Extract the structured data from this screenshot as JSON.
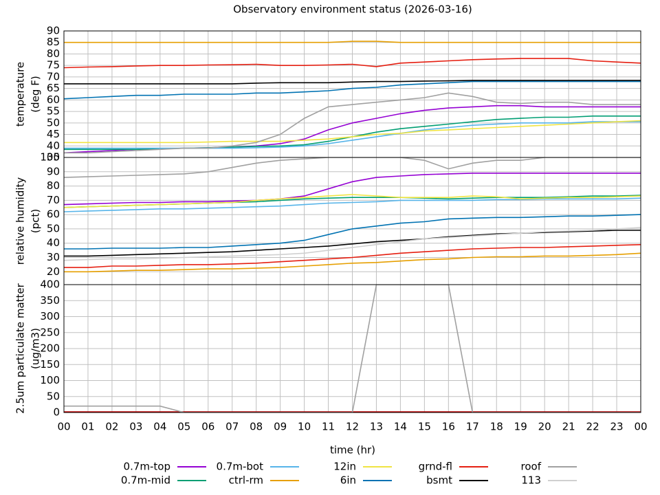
{
  "chart_data": [
    {
      "type": "line",
      "title": "Observatory environment status (2026-03-16)",
      "ylabel": [
        "temperature",
        "(deg F)"
      ],
      "x": [
        0,
        1,
        2,
        3,
        4,
        5,
        6,
        7,
        8,
        9,
        10,
        11,
        12,
        13,
        14,
        15,
        16,
        17,
        18,
        19,
        20,
        21,
        22,
        23,
        24
      ],
      "xlim": [
        0,
        24
      ],
      "ylim": [
        35,
        90
      ],
      "yticks": [
        35,
        40,
        45,
        50,
        55,
        60,
        65,
        70,
        75,
        80,
        85,
        90
      ],
      "grid": true,
      "series": [
        {
          "name": "0.7m-top",
          "color": "#9400d3",
          "values": [
            37,
            37.5,
            38,
            38.5,
            38.8,
            39,
            39.2,
            39.5,
            40,
            41,
            43,
            47,
            50,
            52,
            54,
            55.5,
            56.5,
            57,
            57.5,
            57.5,
            57,
            57,
            57,
            57,
            57
          ]
        },
        {
          "name": "0.7m-mid",
          "color": "#009e73",
          "values": [
            38.5,
            38.5,
            38.5,
            38.5,
            38.7,
            39,
            39.2,
            39.5,
            39.8,
            40,
            40.5,
            42,
            44,
            46,
            47.5,
            48.5,
            49.5,
            50.5,
            51.5,
            52,
            52.5,
            52.5,
            53,
            53,
            53
          ]
        },
        {
          "name": "0.7m-bot",
          "color": "#56b4e9",
          "values": [
            39,
            39,
            39,
            39,
            39,
            39,
            39,
            39,
            39.2,
            39.5,
            40,
            41,
            42.5,
            44,
            45.5,
            47,
            48,
            49,
            49.5,
            50,
            50,
            50,
            50.5,
            50.5,
            50.5
          ]
        },
        {
          "name": "ctrl-rm",
          "color": "#e69f00",
          "values": [
            85,
            85,
            85,
            85,
            85,
            85,
            85,
            85,
            85,
            85,
            85,
            85,
            85.5,
            85.5,
            85,
            85,
            85,
            85,
            85,
            85,
            85,
            85,
            85,
            85,
            85
          ]
        },
        {
          "name": "12in",
          "color": "#f0e442",
          "values": [
            41.5,
            41.5,
            41.5,
            41.5,
            41.5,
            41.5,
            41.7,
            42,
            42,
            42,
            42.5,
            43,
            44,
            45,
            45.5,
            46.5,
            47,
            47.5,
            48,
            48.5,
            49,
            49.5,
            50,
            50.5,
            51
          ]
        },
        {
          "name": "6in",
          "color": "#0072b2",
          "values": [
            60.5,
            61,
            61.5,
            62,
            62,
            62.5,
            62.5,
            62.5,
            63,
            63,
            63.5,
            64,
            65,
            65.5,
            66.5,
            67,
            67.5,
            68,
            68,
            68,
            68,
            68,
            68,
            68,
            68
          ]
        },
        {
          "name": "grnd-fl",
          "color": "#e51e10",
          "values": [
            74,
            74.3,
            74.5,
            74.8,
            75,
            75,
            75.2,
            75.3,
            75.5,
            75,
            75,
            75.2,
            75.5,
            74.5,
            76,
            76.5,
            77,
            77.5,
            77.8,
            78,
            78,
            78,
            77,
            76.5,
            76
          ]
        },
        {
          "name": "bsmt",
          "color": "#000000",
          "values": [
            67,
            67,
            67,
            67,
            67,
            67,
            67,
            67,
            67.3,
            67.5,
            67.5,
            67.5,
            67.8,
            68,
            68,
            68.2,
            68.3,
            68.5,
            68.5,
            68.5,
            68.5,
            68.5,
            68.5,
            68.5,
            68.5
          ]
        },
        {
          "name": "roof",
          "color": "#a0a0a0",
          "values": [
            37,
            37,
            37.5,
            38,
            38.5,
            39,
            39,
            40,
            41.5,
            45,
            52,
            57,
            58,
            59,
            60,
            61,
            63,
            61.5,
            59,
            58.5,
            59,
            59,
            58,
            58,
            58
          ]
        },
        {
          "name": "113",
          "color": "#d0d0d0",
          "values": [
            null,
            null,
            null,
            null,
            null,
            null,
            null,
            null,
            null,
            null,
            null,
            null,
            null,
            null,
            null,
            null,
            null,
            null,
            null,
            null,
            null,
            null,
            null,
            null,
            null
          ]
        }
      ]
    },
    {
      "type": "line",
      "ylabel": [
        "relative humidity",
        "(pct)"
      ],
      "x": [
        0,
        1,
        2,
        3,
        4,
        5,
        6,
        7,
        8,
        9,
        10,
        11,
        12,
        13,
        14,
        15,
        16,
        17,
        18,
        19,
        20,
        21,
        22,
        23,
        24
      ],
      "xlim": [
        0,
        24
      ],
      "ylim": [
        11,
        100
      ],
      "yticks": [
        20,
        30,
        40,
        50,
        60,
        70,
        80,
        90,
        100
      ],
      "grid": true,
      "series": [
        {
          "name": "0.7m-top",
          "color": "#9400d3",
          "values": [
            67,
            67.5,
            68,
            68.5,
            68.5,
            69,
            69,
            69.5,
            70,
            71,
            73,
            78,
            83,
            86,
            87,
            88,
            88.5,
            89,
            89,
            89,
            89,
            89,
            89,
            89,
            89
          ]
        },
        {
          "name": "0.7m-mid",
          "color": "#009e73",
          "values": [
            65,
            65.5,
            66,
            66.5,
            67,
            67.5,
            68,
            68.5,
            69,
            70,
            71,
            71.5,
            72,
            72,
            72,
            71.5,
            71,
            71.5,
            72,
            72,
            72,
            72.5,
            73,
            73,
            73.5
          ]
        },
        {
          "name": "0.7m-bot",
          "color": "#56b4e9",
          "values": [
            62,
            62.5,
            63,
            63.5,
            64,
            64,
            64.5,
            65,
            65.5,
            66,
            67,
            68,
            68.5,
            69,
            70,
            70,
            70,
            70,
            70.5,
            70.5,
            71,
            71,
            71,
            71,
            71.5
          ]
        },
        {
          "name": "ctrl-rm",
          "color": "#e69f00",
          "values": [
            20,
            20,
            20.5,
            21,
            21,
            21.5,
            22,
            22,
            22.5,
            23,
            24,
            25,
            26,
            26.5,
            27.5,
            28.5,
            29,
            30,
            30.5,
            30.5,
            31,
            31,
            31.5,
            32,
            33
          ]
        },
        {
          "name": "12in",
          "color": "#f0e442",
          "values": [
            65,
            65.5,
            66,
            66.5,
            67,
            67.5,
            68,
            68.5,
            70,
            71,
            72,
            73,
            74,
            73,
            72,
            72,
            72,
            73,
            72.5,
            71,
            71.5,
            72,
            72,
            72.5,
            73
          ]
        },
        {
          "name": "6in",
          "color": "#0072b2",
          "values": [
            36,
            36,
            36.5,
            36.5,
            36.5,
            37,
            37,
            38,
            39,
            40,
            42,
            46,
            50,
            52,
            54,
            55,
            57,
            57.5,
            58,
            58,
            58.5,
            59,
            59,
            59.5,
            60
          ]
        },
        {
          "name": "grnd-fl",
          "color": "#e51e10",
          "values": [
            23,
            23,
            24,
            24,
            24.5,
            25,
            25,
            25.5,
            26,
            27,
            28,
            29,
            30,
            31.5,
            33,
            34,
            35,
            36,
            36.5,
            37,
            37,
            37.5,
            38,
            38.5,
            39
          ]
        },
        {
          "name": "bsmt",
          "color": "#000000",
          "values": [
            31,
            31,
            31.5,
            32,
            32.5,
            33,
            33.5,
            34,
            35,
            36,
            37,
            38,
            39.5,
            41,
            42,
            43,
            44.5,
            45.5,
            46.5,
            47,
            47.5,
            48,
            48.5,
            49,
            49
          ]
        },
        {
          "name": "roof",
          "color": "#a0a0a0",
          "values": [
            86,
            86.5,
            87,
            87.5,
            88,
            88.5,
            90,
            93,
            96,
            98,
            99,
            100,
            100,
            100,
            100,
            98,
            92,
            96,
            98,
            98,
            100,
            100,
            100,
            100,
            100
          ]
        },
        {
          "name": "113",
          "color": "#d0d0d0",
          "values": [
            28,
            28.5,
            29,
            29,
            29.5,
            30,
            30.5,
            31,
            31.5,
            32,
            33,
            35,
            37,
            39,
            41,
            43,
            44,
            45,
            46,
            47,
            48,
            48.5,
            49,
            50,
            51
          ]
        }
      ]
    },
    {
      "type": "line",
      "ylabel": [
        "2.5um particulate matter",
        "(ug/m3)"
      ],
      "xlabel": "time (hr)",
      "x": [
        0,
        1,
        2,
        3,
        4,
        5,
        6,
        7,
        8,
        9,
        10,
        11,
        12,
        13,
        14,
        15,
        16,
        17,
        18,
        19,
        20,
        21,
        22,
        23,
        24
      ],
      "xlim": [
        0,
        24
      ],
      "ylim": [
        0,
        400
      ],
      "yticks": [
        0,
        50,
        100,
        150,
        200,
        250,
        300,
        350,
        400
      ],
      "grid": true,
      "xticks": [
        {
          "value": 0,
          "label": "00"
        },
        {
          "value": 1,
          "label": "01"
        },
        {
          "value": 2,
          "label": "02"
        },
        {
          "value": 3,
          "label": "03"
        },
        {
          "value": 4,
          "label": "04"
        },
        {
          "value": 5,
          "label": "05"
        },
        {
          "value": 6,
          "label": "06"
        },
        {
          "value": 7,
          "label": "07"
        },
        {
          "value": 8,
          "label": "08"
        },
        {
          "value": 9,
          "label": "09"
        },
        10,
        11,
        12,
        13,
        14,
        15,
        16,
        17,
        18,
        19,
        20,
        21,
        22,
        23,
        {
          "value": 24,
          "label": "00"
        }
      ],
      "series": [
        {
          "name": "grnd-fl",
          "color": "#c00000",
          "values": [
            2,
            2,
            2,
            2,
            2,
            2,
            2,
            2,
            2,
            2,
            2,
            2,
            2,
            2,
            2,
            2,
            2,
            2,
            2,
            2,
            2,
            2,
            2,
            2,
            2
          ]
        },
        {
          "name": "roof",
          "color": "#a0a0a0",
          "values": [
            20,
            20,
            20,
            20,
            20,
            0,
            0,
            0,
            0,
            0,
            0,
            0,
            0,
            400,
            400,
            400,
            400,
            0,
            0,
            0,
            0,
            0,
            0,
            0,
            0
          ]
        }
      ]
    }
  ]
}
